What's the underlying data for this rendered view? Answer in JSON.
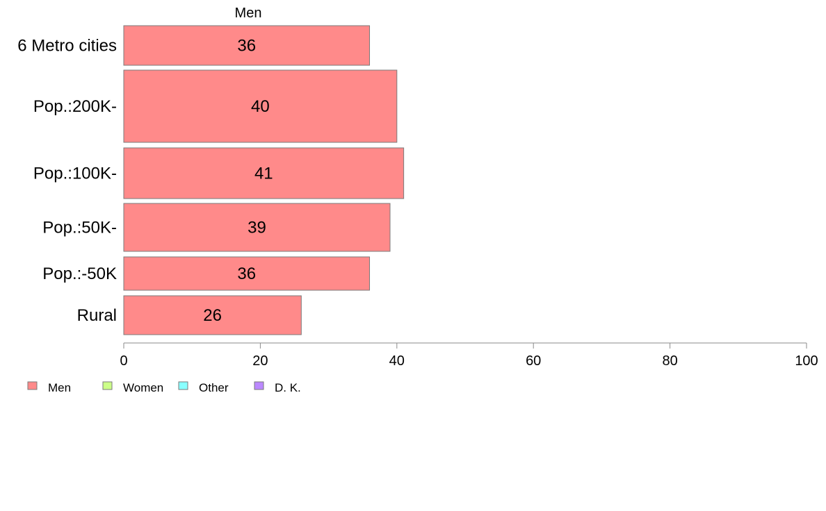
{
  "chart_data": {
    "type": "bar",
    "orientation": "horizontal",
    "stacked": true,
    "title": "Men",
    "categories": [
      "6 Metro cities",
      "Pop.:200K-",
      "Pop.:100K-",
      "Pop.:50K-",
      "Pop.:-50K",
      "Rural"
    ],
    "series": [
      {
        "name": "Men",
        "values": [
          36,
          40,
          41,
          39,
          36,
          26
        ],
        "color": "#ff8a8a"
      }
    ],
    "xlim": [
      0,
      100
    ],
    "xticks": [
      0,
      20,
      40,
      60,
      80,
      100
    ],
    "legend": {
      "position": "bottom-left",
      "entries": [
        {
          "label": "Men",
          "color": "#ff8a8a"
        },
        {
          "label": "Women",
          "color": "#ccff88"
        },
        {
          "label": "Other",
          "color": "#88ffff"
        },
        {
          "label": "D. K.",
          "color": "#bb88ff"
        }
      ]
    },
    "grid": false
  }
}
